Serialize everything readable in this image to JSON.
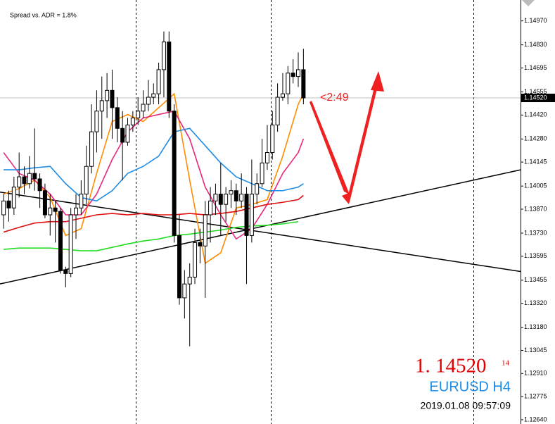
{
  "chart_data": {
    "type": "candlestick",
    "indicator_text": "Spread vs. ADR = 1.8%",
    "countdown": "<2:49",
    "price_big": "1. 14520",
    "price_small": "14",
    "symbol": "EURUSD H4",
    "timestamp": "2019.01.08 09:57:09",
    "xlim": [
      -0.7,
      100
    ],
    "ylim": [
      1.12615,
      1.15092
    ],
    "yticks": [
      {
        "value": 1.1497,
        "label": "1.14970"
      },
      {
        "value": 1.1483,
        "label": "1.14830"
      },
      {
        "value": 1.14695,
        "label": "1.14695"
      },
      {
        "value": 1.14555,
        "label": "1.14555"
      },
      {
        "value": 1.1442,
        "label": "1.14420"
      },
      {
        "value": 1.1428,
        "label": "1.14280"
      },
      {
        "value": 1.14145,
        "label": "1.14145"
      },
      {
        "value": 1.14005,
        "label": "1.14005"
      },
      {
        "value": 1.1387,
        "label": "1.13870"
      },
      {
        "value": 1.1373,
        "label": "1.13730"
      },
      {
        "value": 1.13595,
        "label": "1.13595"
      },
      {
        "value": 1.13455,
        "label": "1.13455"
      },
      {
        "value": 1.1332,
        "label": "1.13320"
      },
      {
        "value": 1.1318,
        "label": "1.13180"
      },
      {
        "value": 1.13045,
        "label": "1.13045"
      },
      {
        "value": 1.1291,
        "label": "1.12910"
      },
      {
        "value": 1.12775,
        "label": "1.12775"
      },
      {
        "value": 1.1264,
        "label": "1.12640"
      }
    ],
    "current_price": {
      "value": 1.1452,
      "label": "1.14520"
    },
    "up_color": "#ffffff",
    "down_color": "#000000",
    "open": [
      1.13837,
      1.13918,
      1.13877,
      1.13999,
      1.14059,
      1.14019,
      1.14079,
      1.14047,
      1.13978,
      1.13837,
      1.13877,
      1.13857,
      1.13514,
      1.13494,
      1.13837,
      1.13877,
      1.13958,
      1.1412,
      1.14322,
      1.14443,
      1.14504,
      1.14564,
      1.14463,
      1.14342,
      1.14261,
      1.14362,
      1.14403,
      1.14443,
      1.14483,
      1.14524,
      1.14544,
      1.14685,
      1.14847,
      1.14443,
      1.13716,
      1.13352,
      1.13433,
      1.13473,
      1.13675,
      1.13655,
      1.13837,
      1.13918,
      1.13958,
      1.13898,
      1.13958,
      1.13978,
      1.13918,
      1.13958,
      1.13716,
      1.13958,
      1.14019,
      1.1414,
      1.14201,
      1.14362,
      1.14524,
      1.14544,
      1.14665,
      1.14645,
      1.14685
    ],
    "high": [
      1.13958,
      1.13978,
      1.14059,
      1.14201,
      1.1412,
      1.1418,
      1.14342,
      1.14079,
      1.14019,
      1.13958,
      1.13918,
      1.13877,
      1.13534,
      1.13877,
      1.13958,
      1.14039,
      1.14241,
      1.14483,
      1.14564,
      1.14645,
      1.14665,
      1.14685,
      1.14524,
      1.14443,
      1.14403,
      1.14443,
      1.14524,
      1.14564,
      1.14625,
      1.14605,
      1.14726,
      1.14908,
      1.14908,
      1.14483,
      1.13837,
      1.13514,
      1.13554,
      1.13756,
      1.13756,
      1.13918,
      1.13999,
      1.14019,
      1.1414,
      1.13999,
      1.14039,
      1.14019,
      1.14079,
      1.13999,
      1.1416,
      1.14079,
      1.14281,
      1.14362,
      1.14443,
      1.14605,
      1.14665,
      1.14706,
      1.14746,
      1.14786,
      1.14807
    ],
    "low": [
      1.13756,
      1.13797,
      1.13837,
      1.13938,
      1.13958,
      1.13991,
      1.13978,
      1.13877,
      1.13817,
      1.13716,
      1.13675,
      1.13494,
      1.13413,
      1.13473,
      1.13696,
      1.13837,
      1.13898,
      1.14079,
      1.14201,
      1.14281,
      1.14403,
      1.14281,
      1.14261,
      1.14039,
      1.14241,
      1.14322,
      1.14362,
      1.14403,
      1.14443,
      1.14483,
      1.14483,
      1.14524,
      1.14403,
      1.13675,
      1.13312,
      1.13231,
      1.13069,
      1.13433,
      1.13554,
      1.13352,
      1.13675,
      1.13837,
      1.13716,
      1.13797,
      1.13877,
      1.13837,
      1.13877,
      1.13433,
      1.13675,
      1.13898,
      1.13999,
      1.141,
      1.1416,
      1.14322,
      1.14504,
      1.14483,
      1.14605,
      1.14584,
      1.14483
    ],
    "close": [
      1.13918,
      1.13877,
      1.13999,
      1.14059,
      1.14019,
      1.14079,
      1.14047,
      1.13978,
      1.13837,
      1.13877,
      1.13857,
      1.13514,
      1.13494,
      1.13837,
      1.13877,
      1.13958,
      1.1412,
      1.14322,
      1.14443,
      1.14504,
      1.14564,
      1.14463,
      1.14342,
      1.14261,
      1.14362,
      1.14403,
      1.14443,
      1.14483,
      1.14524,
      1.14544,
      1.14685,
      1.14847,
      1.14443,
      1.13716,
      1.13352,
      1.13433,
      1.13473,
      1.13675,
      1.13655,
      1.13837,
      1.13918,
      1.13958,
      1.13898,
      1.13958,
      1.13978,
      1.13918,
      1.13958,
      1.13716,
      1.13958,
      1.14019,
      1.1414,
      1.14201,
      1.14362,
      1.14524,
      1.14544,
      1.14665,
      1.14645,
      1.14685,
      1.1452
    ],
    "overlays": [
      {
        "color": "#ff8c00",
        "x": [
          0,
          3,
          6,
          9,
          12,
          15,
          18,
          21,
          24,
          27,
          30,
          33,
          36,
          39,
          42,
          45,
          48,
          51,
          54,
          57,
          58
        ],
        "values": [
          1.13958,
          1.13991,
          1.14039,
          1.13938,
          1.13716,
          1.13756,
          1.14079,
          1.14382,
          1.14423,
          1.14382,
          1.14463,
          1.14544,
          1.14039,
          1.13554,
          1.13615,
          1.13877,
          1.13898,
          1.13926,
          1.1418,
          1.14483,
          1.14544
        ]
      },
      {
        "color": "#e6287d",
        "x": [
          0,
          3,
          6,
          9,
          12,
          15,
          18,
          21,
          24,
          27,
          30,
          33,
          36,
          39,
          42,
          45,
          48,
          51,
          54,
          57,
          58
        ],
        "values": [
          1.14201,
          1.14079,
          1.14039,
          1.13958,
          1.13837,
          1.13837,
          1.13958,
          1.1416,
          1.14322,
          1.14403,
          1.14423,
          1.14443,
          1.14281,
          1.13999,
          1.13837,
          1.13696,
          1.13756,
          1.13898,
          1.14079,
          1.14201,
          1.14281
        ]
      },
      {
        "color": "#1e8ce6",
        "x": [
          0,
          3,
          6,
          9,
          12,
          15,
          18,
          21,
          24,
          27,
          30,
          33,
          36,
          39,
          42,
          45,
          48,
          51,
          54,
          57,
          58
        ],
        "values": [
          1.141,
          1.141,
          1.14112,
          1.1412,
          1.14019,
          1.13938,
          1.13918,
          1.13978,
          1.14079,
          1.1412,
          1.1418,
          1.14322,
          1.14342,
          1.14241,
          1.1414,
          1.14059,
          1.14019,
          1.13978,
          1.13978,
          1.13999,
          1.14019
        ]
      },
      {
        "color": "#e01010",
        "x": [
          0,
          3,
          6,
          9,
          12,
          15,
          18,
          21,
          24,
          27,
          30,
          33,
          36,
          39,
          42,
          45,
          48,
          51,
          54,
          57,
          58
        ],
        "values": [
          1.13736,
          1.13764,
          1.13789,
          1.13797,
          1.13797,
          1.13817,
          1.13837,
          1.13845,
          1.13837,
          1.13845,
          1.13837,
          1.13837,
          1.13845,
          1.13837,
          1.13845,
          1.13857,
          1.13877,
          1.13898,
          1.1391,
          1.13926,
          1.1395
        ]
      },
      {
        "color": "#22dd22",
        "x": [
          0,
          3,
          6,
          9,
          12,
          15,
          18,
          21,
          24,
          27,
          30,
          33,
          36,
          39,
          42,
          45,
          48,
          51,
          54,
          57
        ],
        "values": [
          1.13635,
          1.13643,
          1.13643,
          1.13643,
          1.13635,
          1.13627,
          1.13627,
          1.13647,
          1.13667,
          1.13684,
          1.13696,
          1.13716,
          1.13724,
          1.13736,
          1.13748,
          1.13764,
          1.13772,
          1.13776,
          1.13784,
          1.13797
        ]
      }
    ],
    "trendlines": [
      {
        "color": "#000000",
        "x": [
          -0.7,
          100
        ],
        "values": [
          1.1397,
          1.13506
        ]
      },
      {
        "color": "#000000",
        "x": [
          -0.7,
          100
        ],
        "values": [
          1.13433,
          1.141
        ]
      }
    ]
  }
}
